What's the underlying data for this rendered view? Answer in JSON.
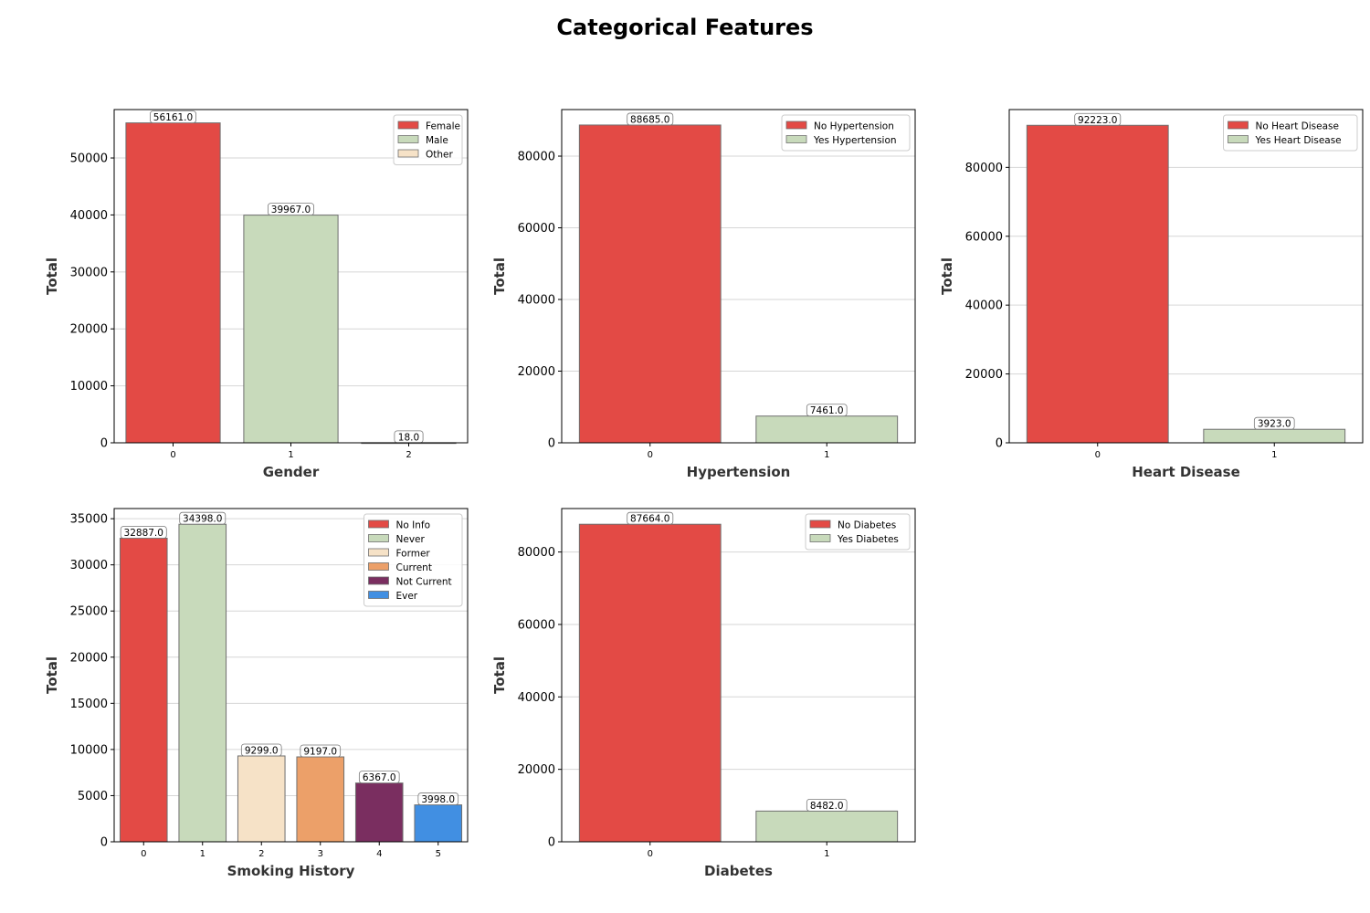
{
  "figure": {
    "title": "Categorical Features",
    "colors": [
      "#e34a45",
      "#c8dabb",
      "#f6e2c7",
      "#eca069",
      "#7a2e60",
      "#418fe2"
    ],
    "edge_color": "#6f6f6f",
    "grid_color": "#d6d6d6"
  },
  "chart_data": [
    {
      "type": "bar",
      "title": "",
      "xlabel": "Gender",
      "ylabel": "Total",
      "categories": [
        "0",
        "1",
        "2"
      ],
      "values": [
        56161.0,
        39967.0,
        18.0
      ],
      "data_labels": [
        "56161.0",
        "39967.0",
        "18.0"
      ],
      "legend": [
        "Female",
        "Male",
        "Other"
      ],
      "legend_position": "top-right",
      "ylim": [
        0,
        58500
      ],
      "yticks": [
        0,
        10000,
        20000,
        30000,
        40000,
        50000
      ],
      "grid": "horizontal"
    },
    {
      "type": "bar",
      "title": "",
      "xlabel": "Hypertension",
      "ylabel": "Total",
      "categories": [
        "0",
        "1"
      ],
      "values": [
        88685.0,
        7461.0
      ],
      "data_labels": [
        "88685.0",
        "7461.0"
      ],
      "legend": [
        "No Hypertension",
        "Yes Hypertension"
      ],
      "legend_position": "top-right",
      "ylim": [
        0,
        93000
      ],
      "yticks": [
        0,
        20000,
        40000,
        60000,
        80000
      ],
      "grid": "horizontal"
    },
    {
      "type": "bar",
      "title": "",
      "xlabel": "Heart Disease",
      "ylabel": "Total",
      "categories": [
        "0",
        "1"
      ],
      "values": [
        92223.0,
        3923.0
      ],
      "data_labels": [
        "92223.0",
        "3923.0"
      ],
      "legend": [
        "No Heart Disease",
        "Yes Heart Disease"
      ],
      "legend_position": "top-right",
      "ylim": [
        0,
        96800
      ],
      "yticks": [
        0,
        20000,
        40000,
        60000,
        80000
      ],
      "grid": "horizontal"
    },
    {
      "type": "bar",
      "title": "",
      "xlabel": "Smoking History",
      "ylabel": "Total",
      "categories": [
        "0",
        "1",
        "2",
        "3",
        "4",
        "5"
      ],
      "values": [
        32887.0,
        34398.0,
        9299.0,
        9197.0,
        6367.0,
        3998.0
      ],
      "data_labels": [
        "32887.0",
        "34398.0",
        "9299.0",
        "9197.0",
        "6367.0",
        "3998.0"
      ],
      "legend": [
        "No Info",
        "Never",
        "Former",
        "Current",
        "Not Current",
        "Ever"
      ],
      "legend_position": "top-right",
      "ylim": [
        0,
        36100
      ],
      "yticks": [
        0,
        5000,
        10000,
        15000,
        20000,
        25000,
        30000,
        35000
      ],
      "grid": "horizontal"
    },
    {
      "type": "bar",
      "title": "",
      "xlabel": "Diabetes",
      "ylabel": "Total",
      "categories": [
        "0",
        "1"
      ],
      "values": [
        87664.0,
        8482.0
      ],
      "data_labels": [
        "87664.0",
        "8482.0"
      ],
      "legend": [
        "No Diabetes",
        "Yes Diabetes"
      ],
      "legend_position": "top-right",
      "ylim": [
        0,
        92000
      ],
      "yticks": [
        0,
        20000,
        40000,
        60000,
        80000
      ],
      "grid": "horizontal"
    }
  ]
}
